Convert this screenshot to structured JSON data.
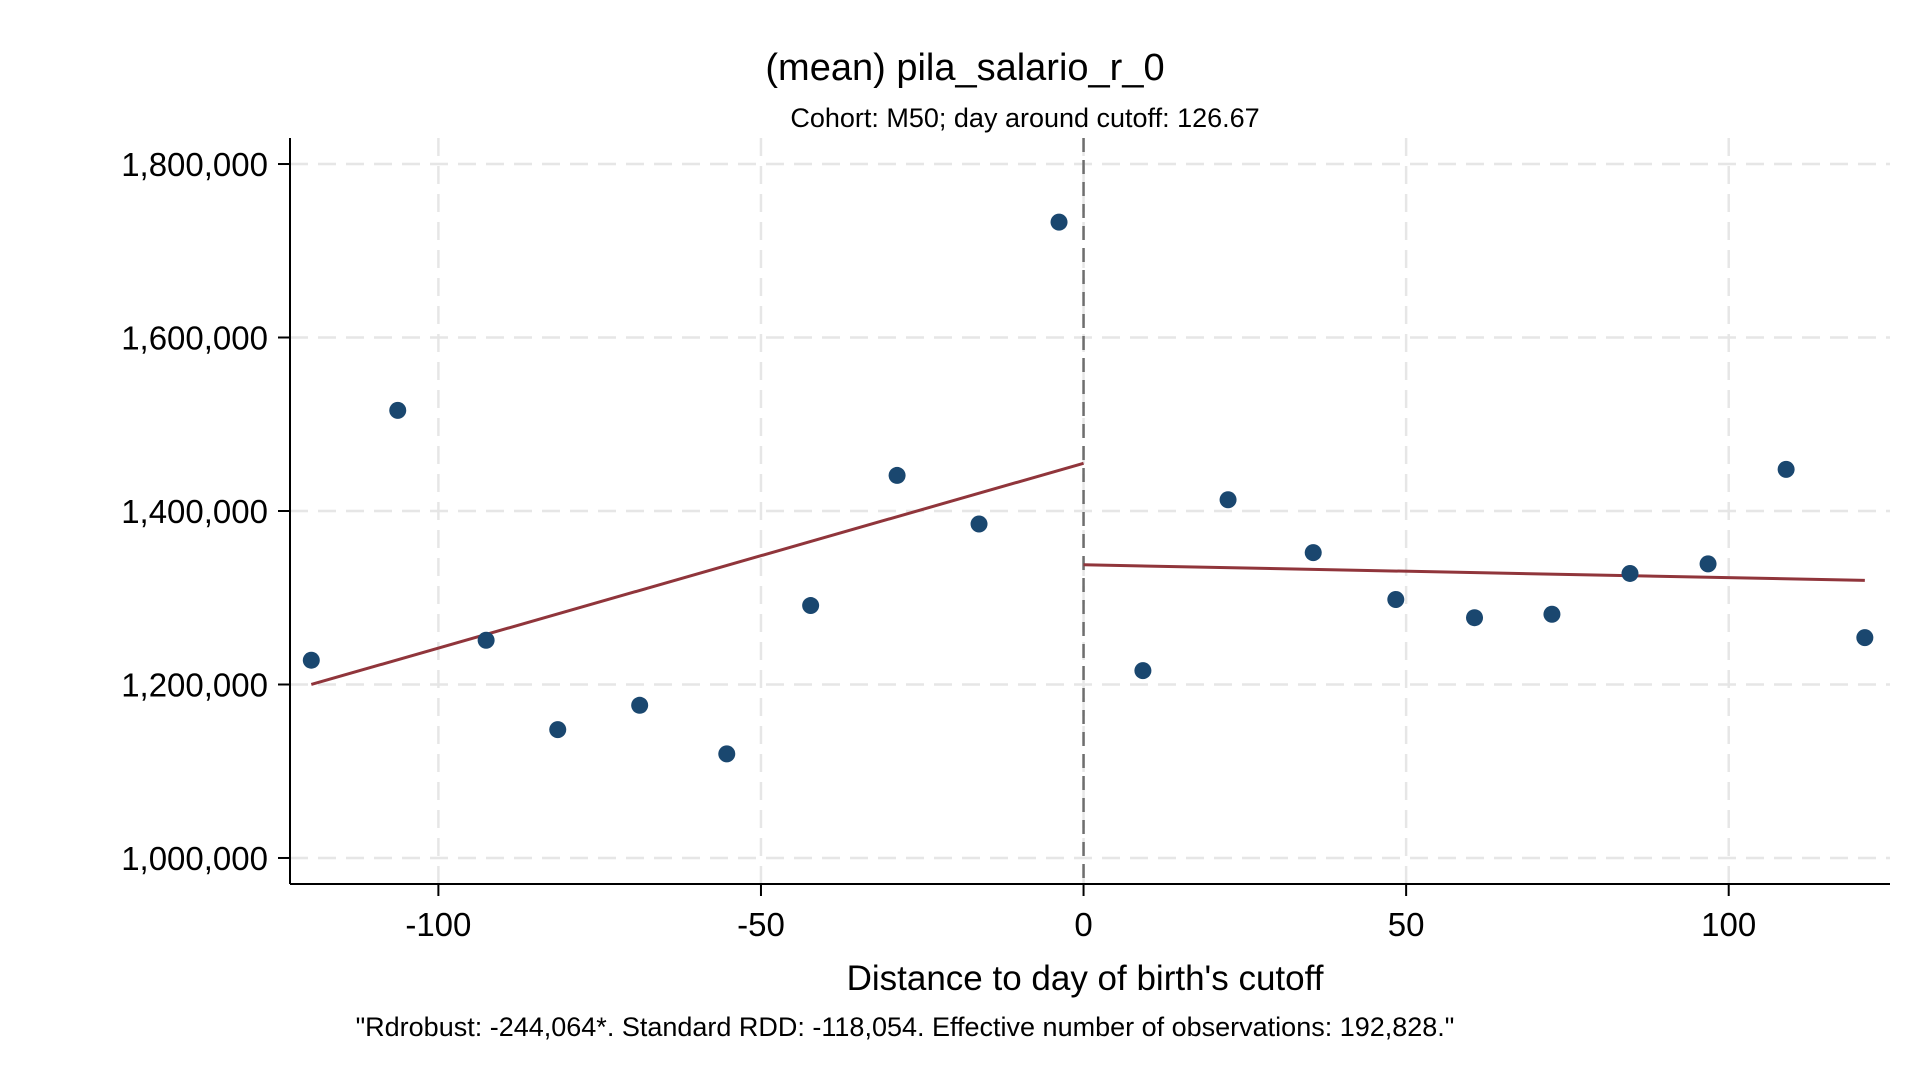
{
  "chart_data": {
    "type": "scatter",
    "title": "(mean) pila_salario_r_0",
    "subtitle": "Cohort: M50; day around cutoff:  126.67",
    "xlabel": "Distance to day of birth's cutoff",
    "ylabel": "",
    "note": "\"Rdrobust: -244,064*. Standard RDD: -118,054. Effective number of observations: 192,828.\"",
    "xlim": [
      -123,
      125
    ],
    "ylim": [
      970000,
      1830000
    ],
    "x_ticks": [
      -100,
      -50,
      0,
      50,
      100
    ],
    "x_tick_labels": [
      "-100",
      "-50",
      "0",
      "50",
      "100"
    ],
    "y_ticks": [
      1000000,
      1200000,
      1400000,
      1600000,
      1800000
    ],
    "y_tick_labels": [
      "1,000,000",
      "1,200,000",
      "1,400,000",
      "1,600,000",
      "1,800,000"
    ],
    "grid": true,
    "cutoff": 0,
    "points": {
      "color": "#1a476f",
      "x": [
        -119.7,
        -106.3,
        -92.6,
        -81.5,
        -68.8,
        -55.3,
        -42.3,
        -28.9,
        -16.2,
        -3.8,
        9.2,
        22.4,
        35.6,
        48.4,
        60.6,
        72.6,
        84.7,
        96.8,
        108.9,
        121.1
      ],
      "y": [
        1228000,
        1516000,
        1251000,
        1148000,
        1176000,
        1120000,
        1291000,
        1441000,
        1385000,
        1733000,
        1216000,
        1413000,
        1352000,
        1298000,
        1277000,
        1281000,
        1328000,
        1339000,
        1448000,
        1254000
      ]
    },
    "fit_lines": [
      {
        "x": [
          -119.7,
          0
        ],
        "y": [
          1200000,
          1455000
        ],
        "color": "#90353b"
      },
      {
        "x": [
          0,
          121.1
        ],
        "y": [
          1338000,
          1320000
        ],
        "color": "#90353b"
      }
    ]
  }
}
